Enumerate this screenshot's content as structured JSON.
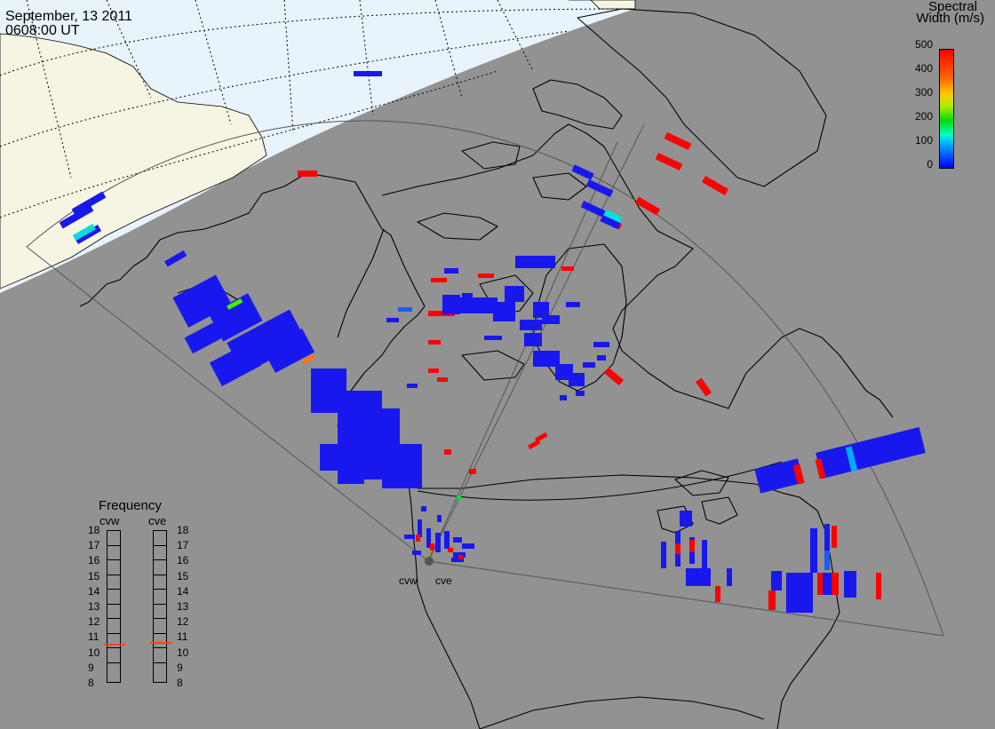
{
  "header": {
    "date": "September, 13 2011",
    "time": "0608:00 UT"
  },
  "colorbar": {
    "title_line1": "Spectral",
    "title_line2": "Width (m/s)",
    "ticks": [
      "500",
      "400",
      "300",
      "200",
      "100",
      "0"
    ],
    "min": 0,
    "max": 500,
    "colors": [
      "#0000ff",
      "#00aaff",
      "#00ffcc",
      "#00dd00",
      "#aaee00",
      "#ffcc00",
      "#ff6600",
      "#ff0000"
    ]
  },
  "frequency_panel": {
    "title": "Frequency",
    "radars": [
      {
        "label": "cvw",
        "value_mhz": 10.5
      },
      {
        "label": "cve",
        "value_mhz": 10.6
      }
    ],
    "scale": [
      "18",
      "17",
      "16",
      "15",
      "14",
      "13",
      "12",
      "11",
      "10",
      "9",
      "8"
    ],
    "marker_color": "#ff4400"
  },
  "sites": [
    {
      "label": "cvw"
    },
    {
      "label": "cve"
    }
  ],
  "map_colors": {
    "background_dark": "#929292",
    "daylight_ocean": "#e8f3fb",
    "daylight_land": "#f6f5e4",
    "coastline": "#000000"
  }
}
